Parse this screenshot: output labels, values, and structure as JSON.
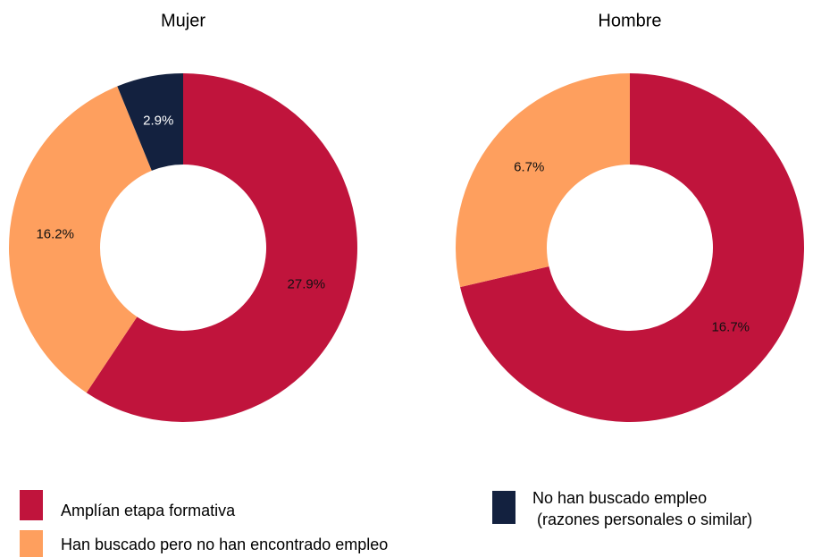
{
  "chart_data": [
    {
      "type": "pie",
      "title": "Mujer",
      "categories": [
        "Amplían etapa formativa",
        "Han buscado pero no han encontrado empleo",
        "No han buscado empleo\n (razones personales o similar)"
      ],
      "colors": [
        "#c0143c",
        "#fe9f5e",
        "#13213f"
      ],
      "values": [
        27.9,
        16.2,
        2.9
      ],
      "value_labels": [
        "27.9%",
        "16.2%",
        "2.9%"
      ]
    },
    {
      "type": "pie",
      "title": "Hombre",
      "colors": [
        "#c0143c",
        "#fe9f5e"
      ],
      "values": [
        16.7,
        6.7
      ],
      "value_labels": [
        "16.7%",
        "6.7%"
      ]
    }
  ]
}
